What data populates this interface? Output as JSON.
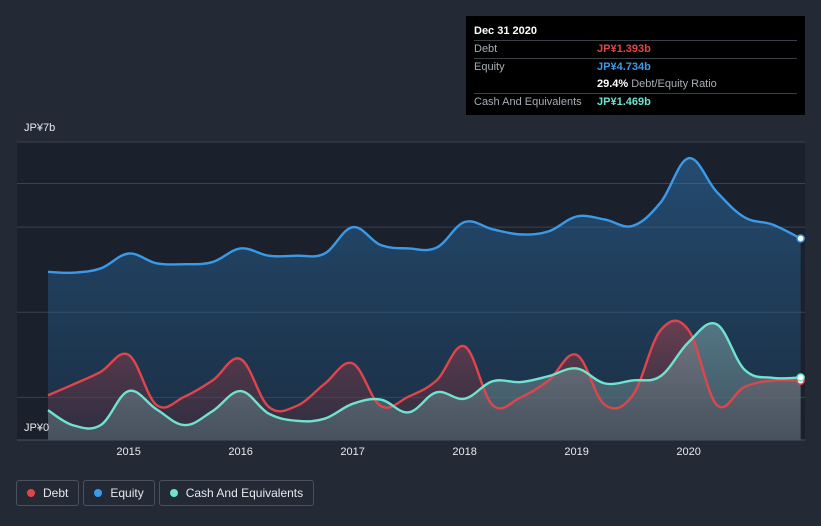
{
  "colors": {
    "debt": "#e0454c",
    "equity": "#3b9ae8",
    "cash": "#6fe3d0",
    "grid": "#3b4250"
  },
  "tooltip": {
    "date": "Dec 31 2020",
    "debt_label": "Debt",
    "debt_value": "JP¥1.393b",
    "equity_label": "Equity",
    "equity_value": "JP¥4.734b",
    "ratio_value": "29.4%",
    "ratio_text": "Debt/Equity Ratio",
    "cash_label": "Cash And Equivalents",
    "cash_value": "JP¥1.469b"
  },
  "legend": {
    "debt": "Debt",
    "equity": "Equity",
    "cash": "Cash And Equivalents"
  },
  "chart_data": {
    "type": "area",
    "title": "",
    "xlabel": "",
    "ylabel": "",
    "y_unit": "JP¥ billions",
    "ylim": [
      0,
      7
    ],
    "y_tick_labels": [
      "JP¥0",
      "JP¥7b"
    ],
    "x_tick_values": [
      2015,
      2016,
      2017,
      2018,
      2019,
      2020
    ],
    "x_tick_labels": [
      "2015",
      "2016",
      "2017",
      "2018",
      "2019",
      "2020"
    ],
    "xlim": [
      2014.28,
      2021.0
    ],
    "series": [
      {
        "name": "Equity",
        "key": "equity",
        "x": [
          2014.28,
          2014.5,
          2014.75,
          2015.0,
          2015.25,
          2015.5,
          2015.75,
          2016.0,
          2016.25,
          2016.5,
          2016.75,
          2017.0,
          2017.25,
          2017.5,
          2017.75,
          2018.0,
          2018.25,
          2018.5,
          2018.75,
          2019.0,
          2019.25,
          2019.5,
          2019.75,
          2020.0,
          2020.25,
          2020.5,
          2020.75,
          2021.0
        ],
        "values": [
          3.95,
          3.93,
          4.03,
          4.38,
          4.15,
          4.13,
          4.18,
          4.5,
          4.33,
          4.33,
          4.38,
          5.0,
          4.58,
          4.5,
          4.52,
          5.12,
          4.95,
          4.83,
          4.9,
          5.25,
          5.18,
          5.03,
          5.58,
          6.62,
          5.83,
          5.23,
          5.06,
          4.734
        ]
      },
      {
        "name": "Debt",
        "key": "debt",
        "x": [
          2014.28,
          2014.5,
          2014.75,
          2015.0,
          2015.25,
          2015.5,
          2015.75,
          2016.0,
          2016.25,
          2016.5,
          2016.75,
          2017.0,
          2017.25,
          2017.5,
          2017.75,
          2018.0,
          2018.25,
          2018.5,
          2018.75,
          2019.0,
          2019.25,
          2019.5,
          2019.75,
          2020.0,
          2020.25,
          2020.5,
          2020.75,
          2021.0
        ],
        "values": [
          1.05,
          1.3,
          1.6,
          2.0,
          0.82,
          1.02,
          1.4,
          1.9,
          0.78,
          0.8,
          1.32,
          1.8,
          0.8,
          1.02,
          1.4,
          2.2,
          0.82,
          1.0,
          1.4,
          2.0,
          0.83,
          1.05,
          2.58,
          2.58,
          0.83,
          1.25,
          1.4,
          1.393
        ]
      },
      {
        "name": "Cash And Equivalents",
        "key": "cash",
        "x": [
          2014.28,
          2014.5,
          2014.75,
          2015.0,
          2015.25,
          2015.5,
          2015.75,
          2016.0,
          2016.25,
          2016.5,
          2016.75,
          2017.0,
          2017.25,
          2017.5,
          2017.75,
          2018.0,
          2018.25,
          2018.5,
          2018.75,
          2019.0,
          2019.25,
          2019.5,
          2019.75,
          2020.0,
          2020.25,
          2020.5,
          2020.75,
          2021.0
        ],
        "values": [
          0.7,
          0.35,
          0.35,
          1.15,
          0.72,
          0.35,
          0.68,
          1.15,
          0.62,
          0.45,
          0.5,
          0.85,
          0.95,
          0.65,
          1.12,
          0.97,
          1.38,
          1.36,
          1.5,
          1.68,
          1.33,
          1.4,
          1.5,
          2.3,
          2.72,
          1.65,
          1.46,
          1.469
        ]
      }
    ]
  }
}
